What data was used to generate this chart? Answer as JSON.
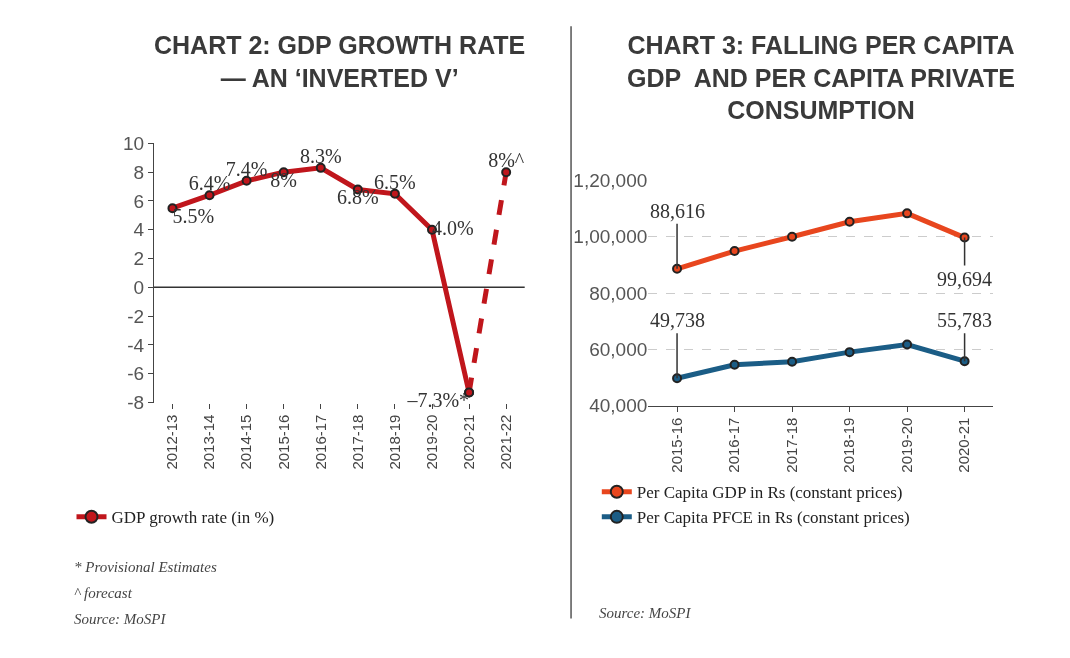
{
  "chart_data": [
    {
      "type": "line",
      "title": "CHART 2: GDP GROWTH RATE\n— AN ‘INVERTED V’",
      "categories": [
        "2012-13",
        "2013-14",
        "2014-15",
        "2015-16",
        "2016-17",
        "2017-18",
        "2018-19",
        "2019-20",
        "2020-21",
        "2021-22"
      ],
      "series": [
        {
          "name": "GDP growth rate (in %)",
          "color": "#c0161c",
          "values": [
            5.5,
            6.4,
            7.4,
            8,
            8.3,
            6.8,
            6.5,
            4.0,
            -7.3,
            null
          ],
          "value_labels": [
            "5.5%",
            "6.4%",
            "7.4%",
            "8%",
            "8.3%",
            "6.8%",
            "6.5%",
            "4.0%",
            "–7.3%*",
            null
          ]
        },
        {
          "color": "#c0161c",
          "line_style": "dashed",
          "values": [
            null,
            null,
            null,
            null,
            null,
            null,
            null,
            null,
            -7.3,
            8
          ],
          "value_labels": [
            null,
            null,
            null,
            null,
            null,
            null,
            null,
            null,
            null,
            "8%^"
          ]
        }
      ],
      "ylim": [
        -8,
        10
      ],
      "yticks": [
        -8,
        -6,
        -4,
        -2,
        0,
        2,
        4,
        6,
        8,
        10
      ],
      "ref_lines": [
        {
          "axis": "y",
          "value": 0
        }
      ],
      "marker": "circle",
      "legend": "bottom",
      "annotations": [
        "* Provisional Estimates",
        "^ forecast",
        "Source: MoSPI"
      ]
    },
    {
      "type": "line",
      "title": "CHART 3: FALLING PER CAPITA\nGDP  AND PER CAPITA PRIVATE\nCONSUMPTION",
      "categories": [
        "2015-16",
        "2016-17",
        "2017-18",
        "2018-19",
        "2019-20",
        "2020-21"
      ],
      "series": [
        {
          "name": "Per Capita GDP in Rs (constant prices)",
          "color": "#e8461e",
          "values": [
            88616,
            94900,
            100000,
            105300,
            108300,
            99694
          ],
          "value_labels": [
            "88,616",
            null,
            null,
            null,
            null,
            "99,694"
          ]
        },
        {
          "name": "Per Capita PFCE in Rs (constant prices)",
          "color": "#1b5d86",
          "values": [
            49738,
            54500,
            55600,
            59000,
            61700,
            55783
          ],
          "value_labels": [
            "49,738",
            null,
            null,
            null,
            null,
            "55,783"
          ]
        }
      ],
      "ylim": [
        40000,
        120000
      ],
      "yticks": [
        {
          "value": 40000,
          "label": "40,000"
        },
        {
          "value": 60000,
          "label": "60,000"
        },
        {
          "value": 80000,
          "label": "80,000"
        },
        {
          "value": 100000,
          "label": "1,00,000"
        },
        {
          "value": 120000,
          "label": "1,20,000"
        }
      ],
      "grid": "y",
      "marker": "circle",
      "legend": "bottom",
      "annotations": [
        "Source: MoSPI"
      ]
    }
  ]
}
